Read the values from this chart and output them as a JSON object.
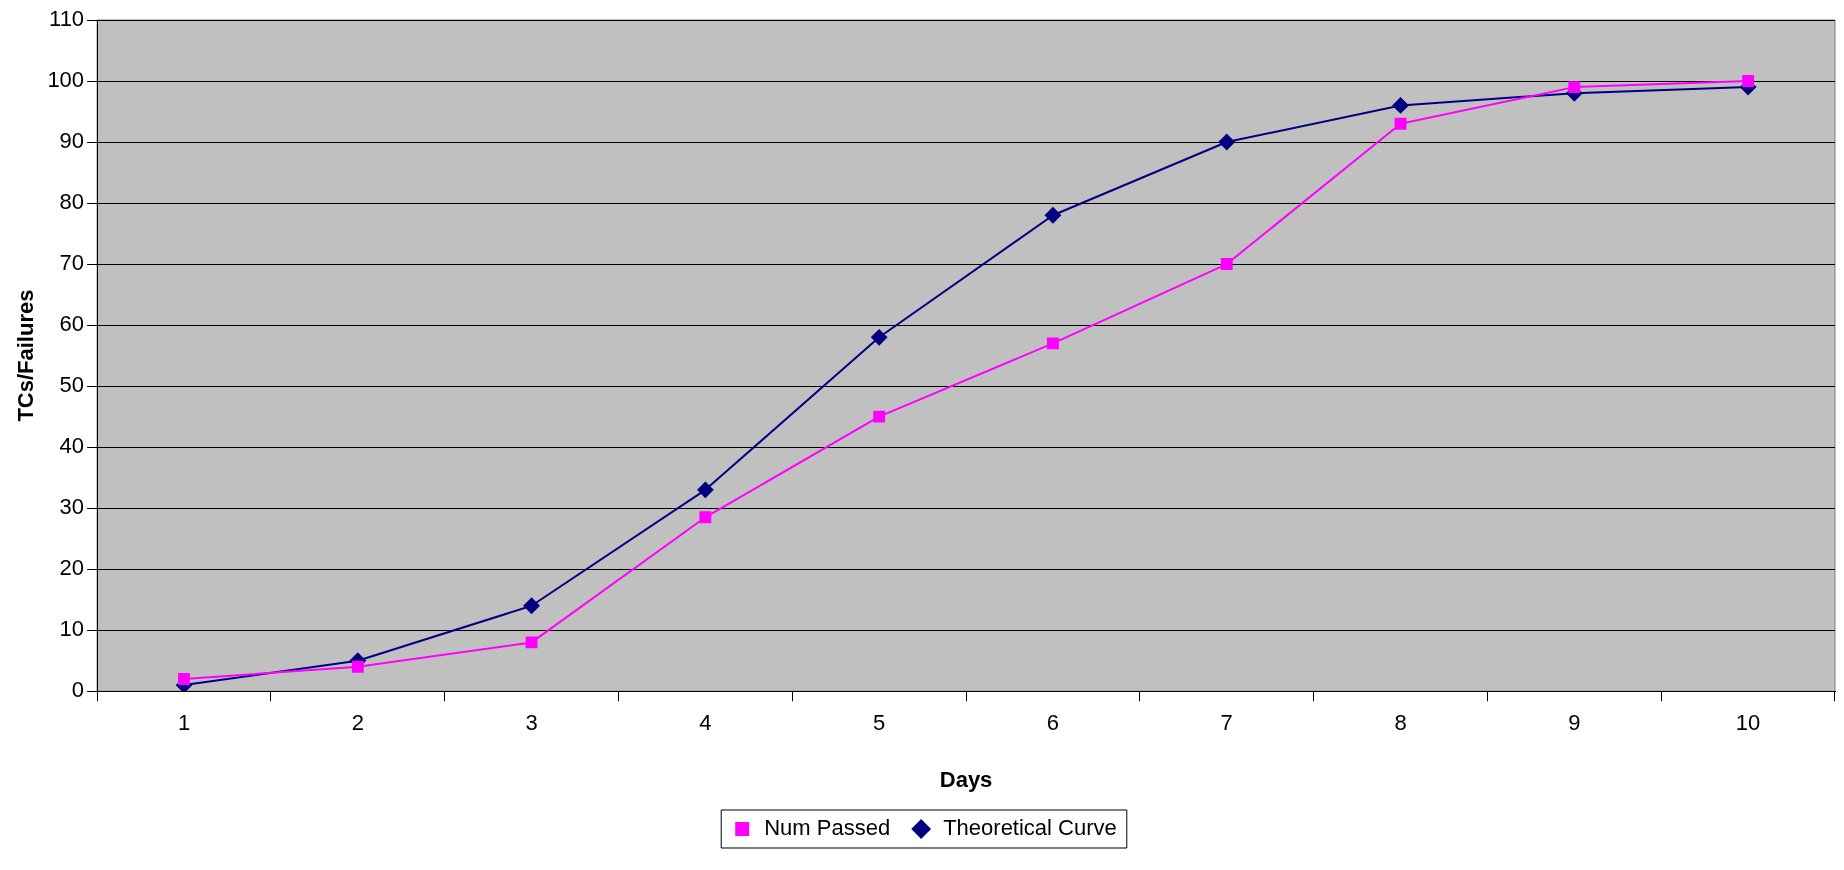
{
  "chart_data": {
    "type": "line",
    "xlabel": "Days",
    "ylabel": "TCs/Failures",
    "categories": [
      "1",
      "2",
      "3",
      "4",
      "5",
      "6",
      "7",
      "8",
      "9",
      "10"
    ],
    "series": [
      {
        "name": "Num Passed",
        "color": "#ff00ff",
        "marker": "square",
        "values": [
          2,
          4,
          8,
          28.5,
          45,
          57,
          70,
          93,
          99,
          100
        ]
      },
      {
        "name": "Theoretical Curve",
        "color": "#000080",
        "marker": "diamond",
        "values": [
          1,
          5,
          14,
          33,
          58,
          78,
          90,
          96,
          98,
          99
        ]
      }
    ],
    "ylim": [
      0,
      110
    ],
    "yticks": [
      0,
      10,
      20,
      30,
      40,
      50,
      60,
      70,
      80,
      90,
      100,
      110
    ],
    "grid": "y",
    "legend": "bottom",
    "line_style": "solid"
  }
}
